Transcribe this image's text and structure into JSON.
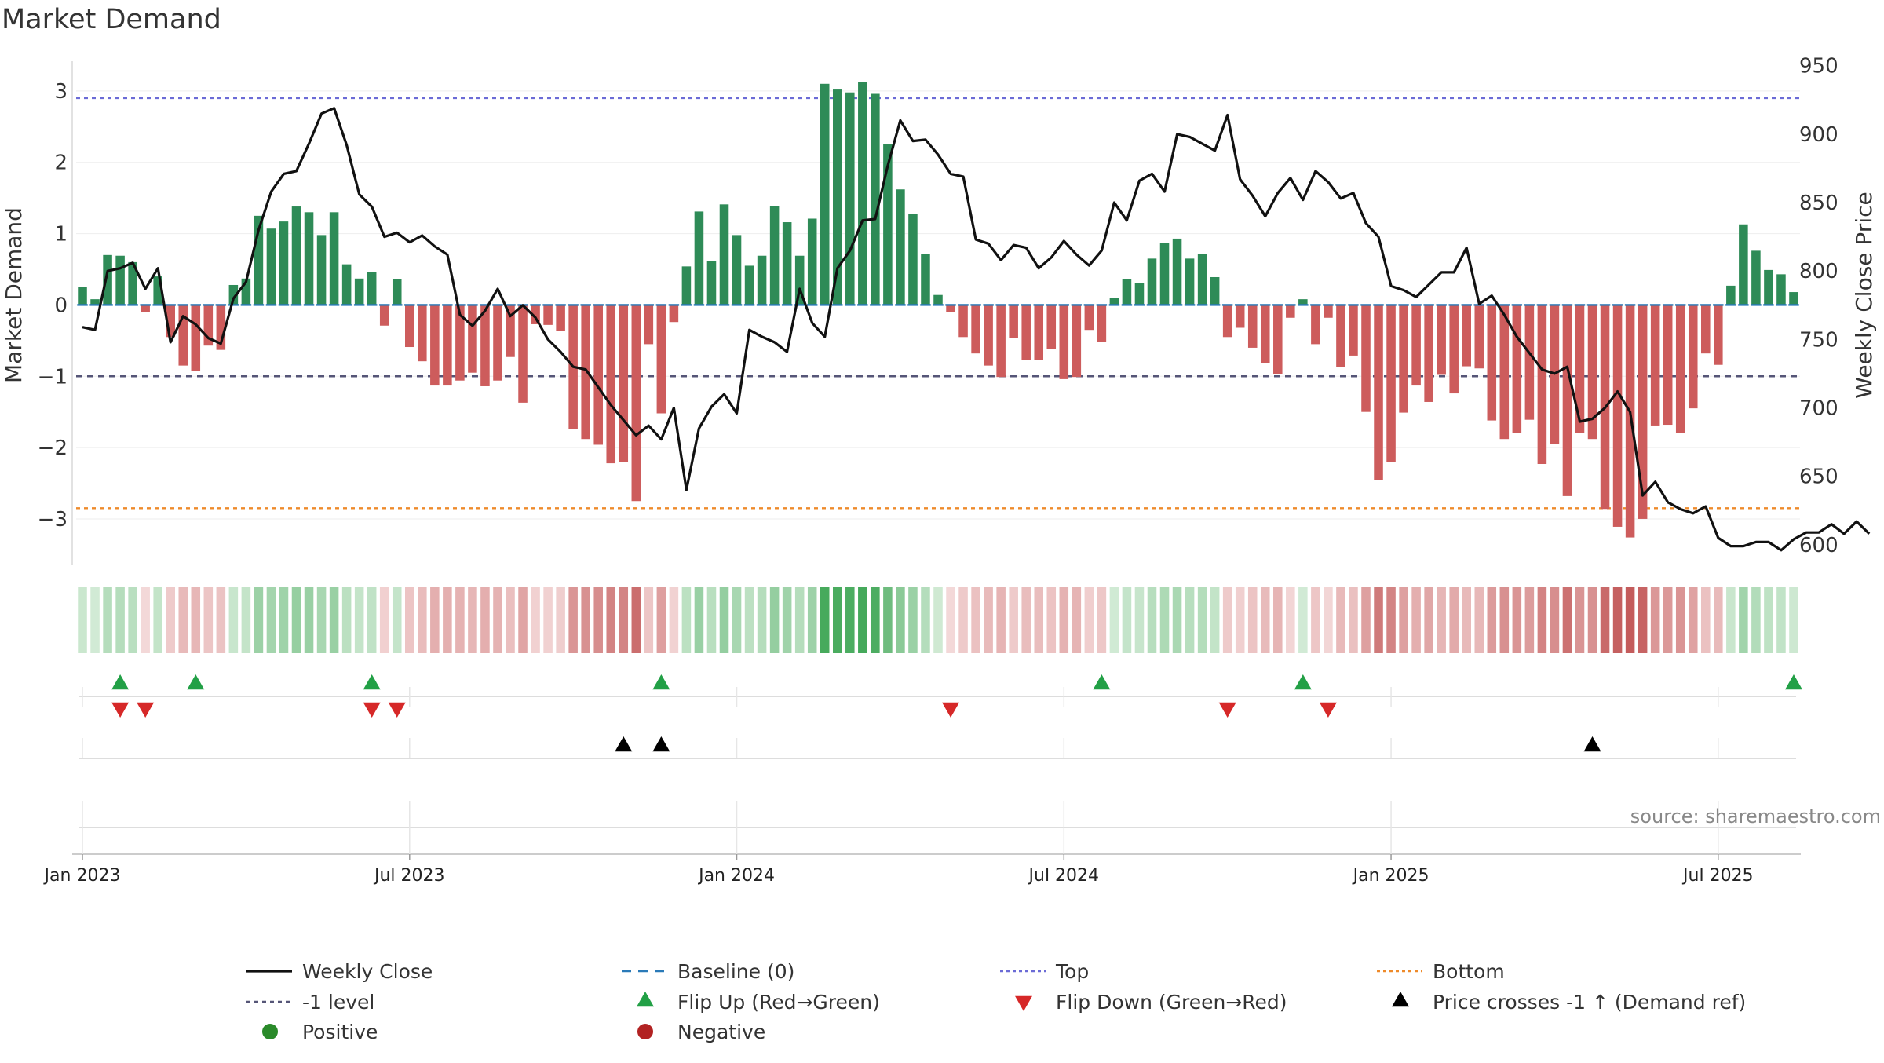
{
  "chart_data": {
    "type": "bar+line",
    "title": "Market Demand",
    "ylabel_left": "Market Demand",
    "ylabel_right": "Weekly Close Price",
    "left_axis": {
      "ylim": [
        -3.65,
        3.45
      ],
      "ticks": [
        -3,
        -2,
        -1,
        0,
        1,
        2,
        3
      ]
    },
    "right_axis": {
      "ylim": [
        585,
        955
      ],
      "ticks": [
        600,
        650,
        700,
        750,
        800,
        850,
        900,
        950
      ]
    },
    "x_axis": {
      "start_week": "2023-01-01",
      "ticks": [
        {
          "label": "Jan 2023",
          "week": 1
        },
        {
          "label": "Jul 2023",
          "week": 27
        },
        {
          "label": "Jan 2024",
          "week": 53
        },
        {
          "label": "Jul 2024",
          "week": 79
        },
        {
          "label": "Jan 2025",
          "week": 105
        },
        {
          "label": "Jul 2025",
          "week": 131
        }
      ]
    },
    "reference_lines": [
      {
        "name": "Top",
        "value": 2.9,
        "color": "#6b6bd6",
        "style": "dotted"
      },
      {
        "name": "-1 level",
        "value": -1.0,
        "color": "#555577",
        "style": "dashed"
      },
      {
        "name": "Bottom",
        "value": -2.85,
        "color": "#ee8a2a",
        "style": "dotted"
      },
      {
        "name": "Baseline (0)",
        "value": 0,
        "color": "#2a7ab8",
        "style": "dashed"
      }
    ],
    "demand": [
      0.25,
      0.08,
      0.7,
      0.69,
      0.6,
      -0.1,
      0.4,
      -0.45,
      -0.85,
      -0.93,
      -0.57,
      -0.63,
      0.28,
      0.37,
      1.25,
      1.07,
      1.17,
      1.38,
      1.3,
      0.98,
      1.3,
      0.57,
      0.37,
      0.46,
      -0.29,
      0.36,
      -0.59,
      -0.79,
      -1.13,
      -1.13,
      -1.06,
      -0.95,
      -1.14,
      -1.06,
      -0.73,
      -1.37,
      -0.27,
      -0.28,
      -0.36,
      -1.74,
      -1.88,
      -1.96,
      -2.22,
      -2.2,
      -2.75,
      -0.55,
      -1.52,
      -0.24,
      0.54,
      1.31,
      0.62,
      1.41,
      0.98,
      0.55,
      0.69,
      1.39,
      1.16,
      0.69,
      1.21,
      3.1,
      3.02,
      2.98,
      3.13,
      2.96,
      2.25,
      1.62,
      1.28,
      0.71,
      0.14,
      -0.1,
      -0.45,
      -0.68,
      -0.85,
      -1.01,
      -0.46,
      -0.77,
      -0.77,
      -0.62,
      -1.04,
      -1.01,
      -0.35,
      -0.52,
      0.1,
      0.36,
      0.31,
      0.65,
      0.87,
      0.93,
      0.65,
      0.72,
      0.39,
      -0.45,
      -0.32,
      -0.6,
      -0.82,
      -0.97,
      -0.18,
      0.08,
      -0.55,
      -0.18,
      -0.87,
      -0.71,
      -1.5,
      -2.46,
      -2.2,
      -1.51,
      -1.13,
      -1.36,
      -0.98,
      -1.24,
      -0.86,
      -0.89,
      -1.62,
      -1.88,
      -1.79,
      -1.61,
      -2.23,
      -1.95,
      -2.68,
      -1.8,
      -1.88,
      -2.86,
      -3.11,
      -3.26,
      -3.0,
      -1.69,
      -1.68,
      -1.79,
      -1.45,
      -0.68,
      -0.84,
      0.27,
      1.13,
      0.76,
      0.49,
      0.43,
      0.18
    ],
    "heat_strip": {
      "name": "Demand heat strip"
    },
    "weekly_close": [
      759,
      757,
      800,
      802,
      806,
      787,
      802,
      748,
      767,
      761,
      751,
      747,
      780,
      792,
      830,
      858,
      871,
      873,
      893,
      915,
      919,
      892,
      856,
      847,
      825,
      828,
      821,
      826,
      818,
      812,
      768,
      760,
      771,
      787,
      767,
      775,
      766,
      750,
      741,
      730,
      728,
      715,
      702,
      691,
      680,
      687,
      677,
      700,
      640,
      685,
      701,
      710,
      696,
      757,
      752,
      748,
      741,
      787,
      762,
      752,
      802,
      815,
      837,
      838,
      877,
      910,
      895,
      896,
      885,
      871,
      869,
      823,
      820,
      808,
      819,
      817,
      802,
      810,
      822,
      812,
      804,
      815,
      850,
      837,
      866,
      871,
      858,
      900,
      898,
      893,
      888,
      914,
      867,
      855,
      840,
      857,
      868,
      852,
      873,
      865,
      853,
      857,
      835,
      825,
      789,
      786,
      781,
      790,
      799,
      799,
      817,
      776,
      782,
      768,
      752,
      740,
      728,
      725,
      730,
      690,
      692,
      700,
      712,
      697,
      636,
      646,
      631,
      626,
      623,
      628,
      605,
      599,
      599,
      602,
      602,
      596,
      604,
      609,
      609,
      615,
      608,
      617,
      608
    ],
    "flip_up_weeks": [
      4,
      10,
      24,
      47,
      82,
      98,
      137
    ],
    "flip_down_weeks": [
      4,
      6,
      24,
      26,
      70,
      92,
      100
    ],
    "price_cross_weeks": [
      44,
      47,
      121
    ],
    "source": "source: sharemaestro.com",
    "legend": [
      {
        "label": "Weekly Close",
        "symbol": "solid-line",
        "color": "#111111"
      },
      {
        "label": "Baseline (0)",
        "symbol": "dashed-line",
        "color": "#2a7ab8"
      },
      {
        "label": "Top",
        "symbol": "dotted-line",
        "color": "#6b6bd6"
      },
      {
        "label": "Bottom",
        "symbol": "dotted-line",
        "color": "#ee8a2a"
      },
      {
        "label": "-1 level",
        "symbol": "dashed-line",
        "color": "#555577"
      },
      {
        "label": "Flip Up (Red→Green)",
        "symbol": "triangle-up",
        "color": "#22a046"
      },
      {
        "label": "Flip Down (Green→Red)",
        "symbol": "triangle-down",
        "color": "#d62828"
      },
      {
        "label": "Price crosses -1 ↑ (Demand ref)",
        "symbol": "triangle-up",
        "color": "#000000"
      },
      {
        "label": "Positive",
        "symbol": "circle",
        "color": "#2a8a2a"
      },
      {
        "label": "Negative",
        "symbol": "circle",
        "color": "#b22222"
      }
    ],
    "colors": {
      "positive_bar": "#2e8b57",
      "negative_bar": "#cd5c5c",
      "line": "#111111"
    }
  }
}
